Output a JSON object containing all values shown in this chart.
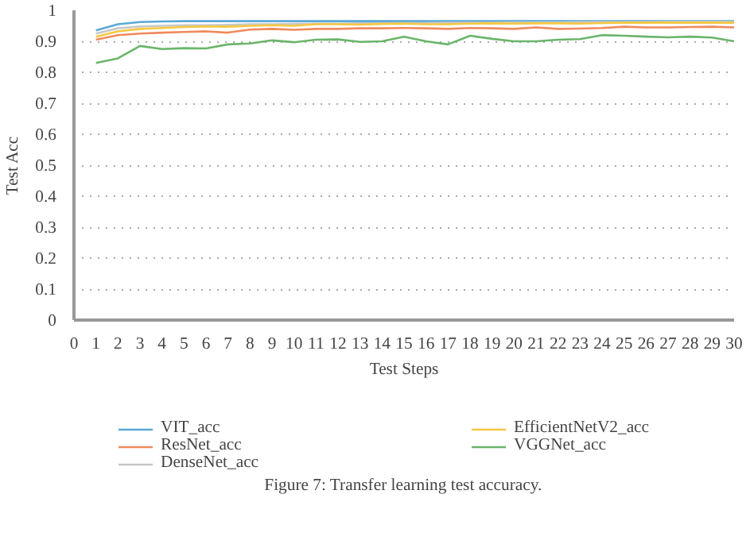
{
  "chart_data": {
    "type": "line",
    "xlabel": "Test Steps",
    "ylabel": "Test Acc",
    "annotations": [
      "Figure 7: Transfer learning test accuracy."
    ],
    "x": [
      1,
      2,
      3,
      4,
      5,
      6,
      7,
      8,
      9,
      10,
      11,
      12,
      13,
      14,
      15,
      16,
      17,
      18,
      19,
      20,
      21,
      22,
      23,
      24,
      25,
      26,
      27,
      28,
      29,
      30
    ],
    "xlim": [
      0,
      30
    ],
    "xticks": [
      0,
      1,
      2,
      3,
      4,
      5,
      6,
      7,
      8,
      9,
      10,
      11,
      12,
      13,
      14,
      15,
      16,
      17,
      18,
      19,
      20,
      21,
      22,
      23,
      24,
      25,
      26,
      27,
      28,
      29,
      30
    ],
    "ylim": [
      0,
      1
    ],
    "yticks": [
      0,
      0.1,
      0.2,
      0.3,
      0.4,
      0.5,
      0.6,
      0.7,
      0.8,
      0.9,
      1
    ],
    "grid": "y",
    "legend": "bottom",
    "line_style": "solid",
    "series": [
      {
        "name": "VIT_acc",
        "color": "#5aa9d6",
        "values": [
          0.935,
          0.955,
          0.962,
          0.964,
          0.965,
          0.965,
          0.965,
          0.965,
          0.965,
          0.965,
          0.965,
          0.965,
          0.965,
          0.965,
          0.965,
          0.965,
          0.965,
          0.965,
          0.965,
          0.965,
          0.965,
          0.965,
          0.965,
          0.965,
          0.965,
          0.965,
          0.965,
          0.965,
          0.965,
          0.965
        ]
      },
      {
        "name": "ResNet_acc",
        "color": "#f08a5d",
        "values": [
          0.905,
          0.92,
          0.925,
          0.928,
          0.93,
          0.932,
          0.928,
          0.938,
          0.94,
          0.937,
          0.94,
          0.94,
          0.942,
          0.942,
          0.943,
          0.942,
          0.94,
          0.943,
          0.942,
          0.94,
          0.945,
          0.94,
          0.941,
          0.943,
          0.947,
          0.945,
          0.945,
          0.946,
          0.947,
          0.945
        ]
      },
      {
        "name": "DenseNet_acc",
        "color": "#c8c8c8",
        "values": [
          0.925,
          0.942,
          0.948,
          0.95,
          0.952,
          0.952,
          0.953,
          0.955,
          0.955,
          0.956,
          0.957,
          0.957,
          0.958,
          0.958,
          0.959,
          0.959,
          0.96,
          0.96,
          0.96,
          0.961,
          0.961,
          0.961,
          0.962,
          0.962,
          0.962,
          0.962,
          0.963,
          0.963,
          0.963,
          0.963
        ]
      },
      {
        "name": "EfficientNetV2_acc",
        "color": "#f5c842",
        "values": [
          0.915,
          0.932,
          0.94,
          0.943,
          0.946,
          0.948,
          0.947,
          0.95,
          0.952,
          0.95,
          0.955,
          0.955,
          0.954,
          0.956,
          0.957,
          0.955,
          0.955,
          0.957,
          0.958,
          0.957,
          0.958,
          0.958,
          0.957,
          0.959,
          0.96,
          0.96,
          0.96,
          0.96,
          0.96,
          0.96
        ]
      },
      {
        "name": "VGGNet_acc",
        "color": "#6ab56a",
        "values": [
          0.83,
          0.845,
          0.885,
          0.875,
          0.878,
          0.877,
          0.89,
          0.893,
          0.903,
          0.897,
          0.905,
          0.906,
          0.898,
          0.9,
          0.915,
          0.9,
          0.89,
          0.918,
          0.908,
          0.9,
          0.9,
          0.905,
          0.907,
          0.92,
          0.918,
          0.915,
          0.913,
          0.915,
          0.912,
          0.9
        ]
      }
    ]
  }
}
